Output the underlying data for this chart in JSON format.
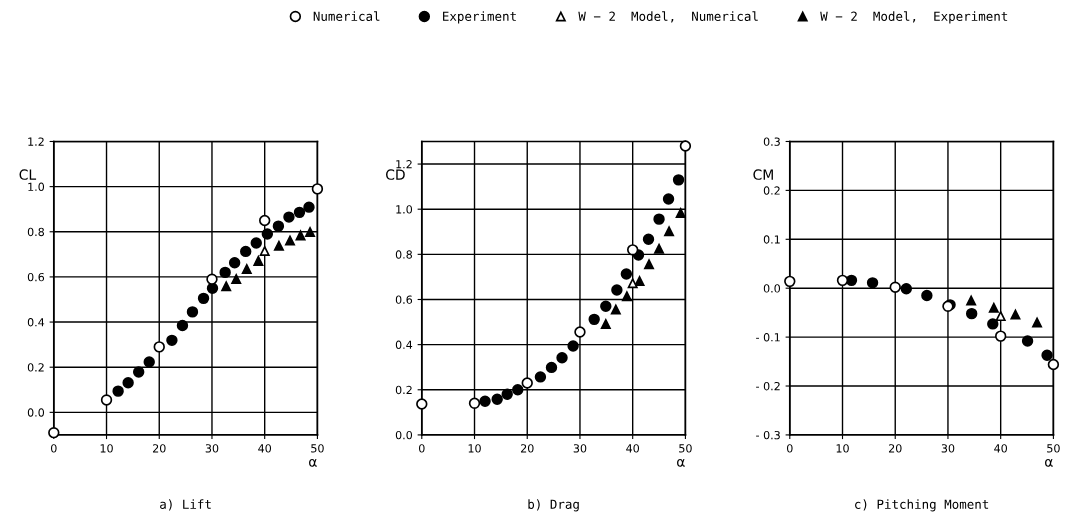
{
  "chart_data": [
    {
      "type": "scatter",
      "title": "a) Lift",
      "xlabel": "α",
      "ylabel": "CL",
      "xlim": [
        0,
        50
      ],
      "xticks": [
        0,
        10,
        20,
        30,
        40,
        50
      ],
      "ylim": [
        -0.1,
        1.2
      ],
      "yticks": [
        {
          "value": 0,
          "label": "0.0"
        },
        {
          "value": 0.2,
          "label": "0.2"
        },
        {
          "value": 0.4,
          "label": "0.4"
        },
        {
          "value": 0.6,
          "label": "0.6"
        },
        {
          "value": 0.8,
          "label": "0.8"
        },
        {
          "value": 1.0,
          "label": "1.0"
        },
        {
          "value": 1.2,
          "label": "1.2"
        }
      ],
      "grid": true,
      "legend": "top",
      "series": [
        {
          "name": "Numerical",
          "color": "#ffffff",
          "marker": "circle",
          "x": [
            0,
            10,
            20,
            30,
            40,
            50
          ],
          "values": [
            -0.09,
            0.055,
            0.29,
            0.59,
            0.85,
            0.99
          ]
        },
        {
          "name": "Experiment",
          "color": "#000000",
          "marker": "circle",
          "x": [
            12.2,
            14.1,
            16.1,
            18.1,
            22.4,
            24.4,
            26.3,
            28.4,
            30.1,
            32.5,
            34.3,
            36.4,
            38.4,
            40.5,
            42.6,
            44.6,
            46.6,
            48.4
          ],
          "values": [
            0.094,
            0.131,
            0.179,
            0.223,
            0.319,
            0.385,
            0.445,
            0.505,
            0.55,
            0.62,
            0.663,
            0.713,
            0.75,
            0.79,
            0.825,
            0.865,
            0.886,
            0.909
          ]
        },
        {
          "name": "W − 2  Model,  Numerical",
          "color": "#ffffff",
          "marker": "triangle",
          "x": [
            40
          ],
          "values": [
            0.715
          ]
        },
        {
          "name": "W − 2  Model,  Experiment",
          "color": "#000000",
          "marker": "triangle",
          "x": [
            32.7,
            34.6,
            36.6,
            38.8,
            42.7,
            44.8,
            46.8,
            48.6
          ],
          "values": [
            0.559,
            0.591,
            0.635,
            0.671,
            0.738,
            0.761,
            0.784,
            0.799
          ]
        }
      ]
    },
    {
      "type": "scatter",
      "title": "b) Drag",
      "xlabel": "α",
      "ylabel": "CD",
      "xlim": [
        0,
        50
      ],
      "xticks": [
        0,
        10,
        20,
        30,
        40,
        50
      ],
      "ylim": [
        0,
        1.3
      ],
      "yticks": [
        {
          "value": 0,
          "label": "0.0"
        },
        {
          "value": 0.2,
          "label": "0.2"
        },
        {
          "value": 0.4,
          "label": "0.4"
        },
        {
          "value": 0.6,
          "label": "0.6"
        },
        {
          "value": 0.8,
          "label": "0.8"
        },
        {
          "value": 1.0,
          "label": "1.0"
        },
        {
          "value": 1.2,
          "label": "1.2"
        }
      ],
      "grid": true,
      "series": [
        {
          "color": "#ffffff",
          "marker": "circle",
          "x": [
            0,
            10,
            20,
            30,
            40,
            50
          ],
          "values": [
            0.137,
            0.14,
            0.23,
            0.456,
            0.82,
            1.28
          ]
        },
        {
          "color": "#000000",
          "marker": "circle",
          "x": [
            12.0,
            14.3,
            16.2,
            18.2,
            22.5,
            24.6,
            26.6,
            28.7,
            32.7,
            34.9,
            37.0,
            38.8,
            41.1,
            43.0,
            45.0,
            46.8,
            48.7
          ],
          "values": [
            0.149,
            0.158,
            0.18,
            0.2,
            0.257,
            0.299,
            0.342,
            0.394,
            0.512,
            0.57,
            0.642,
            0.713,
            0.797,
            0.867,
            0.956,
            1.045,
            1.13
          ]
        },
        {
          "color": "#ffffff",
          "marker": "triangle",
          "x": [
            40
          ],
          "values": [
            0.672
          ]
        },
        {
          "color": "#000000",
          "marker": "triangle",
          "x": [
            34.9,
            36.8,
            38.9,
            41.3,
            43.1,
            45.0,
            46.9,
            49.1
          ],
          "values": [
            0.491,
            0.556,
            0.614,
            0.682,
            0.756,
            0.825,
            0.902,
            0.983
          ]
        }
      ]
    },
    {
      "type": "scatter",
      "title": "c) Pitching Moment",
      "xlabel": "α",
      "ylabel": "CM",
      "xlim": [
        0,
        50
      ],
      "xticks": [
        0,
        10,
        20,
        30,
        40,
        50
      ],
      "ylim": [
        -0.3,
        0.3
      ],
      "yticks": [
        {
          "value": -0.3,
          "label": "- 0.3"
        },
        {
          "value": -0.2,
          "label": "- 0.2"
        },
        {
          "value": -0.1,
          "label": "- 0.1"
        },
        {
          "value": 0,
          "label": "0.0"
        },
        {
          "value": 0.1,
          "label": "0.1"
        },
        {
          "value": 0.2,
          "label": "0.2"
        },
        {
          "value": 0.3,
          "label": "0.3"
        }
      ],
      "grid": true,
      "series": [
        {
          "color": "#ffffff",
          "marker": "circle",
          "x": [
            0,
            10,
            20,
            30,
            40,
            50
          ],
          "values": [
            0.014,
            0.016,
            0.002,
            -0.037,
            -0.098,
            -0.156
          ]
        },
        {
          "color": "#000000",
          "marker": "circle",
          "x": [
            11.7,
            15.7,
            22.1,
            26.0,
            30.4,
            34.5,
            38.5,
            45.1,
            48.8
          ],
          "values": [
            0.016,
            0.011,
            -0.001,
            -0.015,
            -0.034,
            -0.052,
            -0.073,
            -0.108,
            -0.137
          ]
        },
        {
          "color": "#ffffff",
          "marker": "triangle",
          "x": [
            40
          ],
          "values": [
            -0.057
          ]
        },
        {
          "color": "#000000",
          "marker": "triangle",
          "x": [
            34.4,
            38.7,
            42.8,
            46.9
          ],
          "values": [
            -0.025,
            -0.04,
            -0.054,
            -0.07
          ]
        }
      ]
    }
  ]
}
